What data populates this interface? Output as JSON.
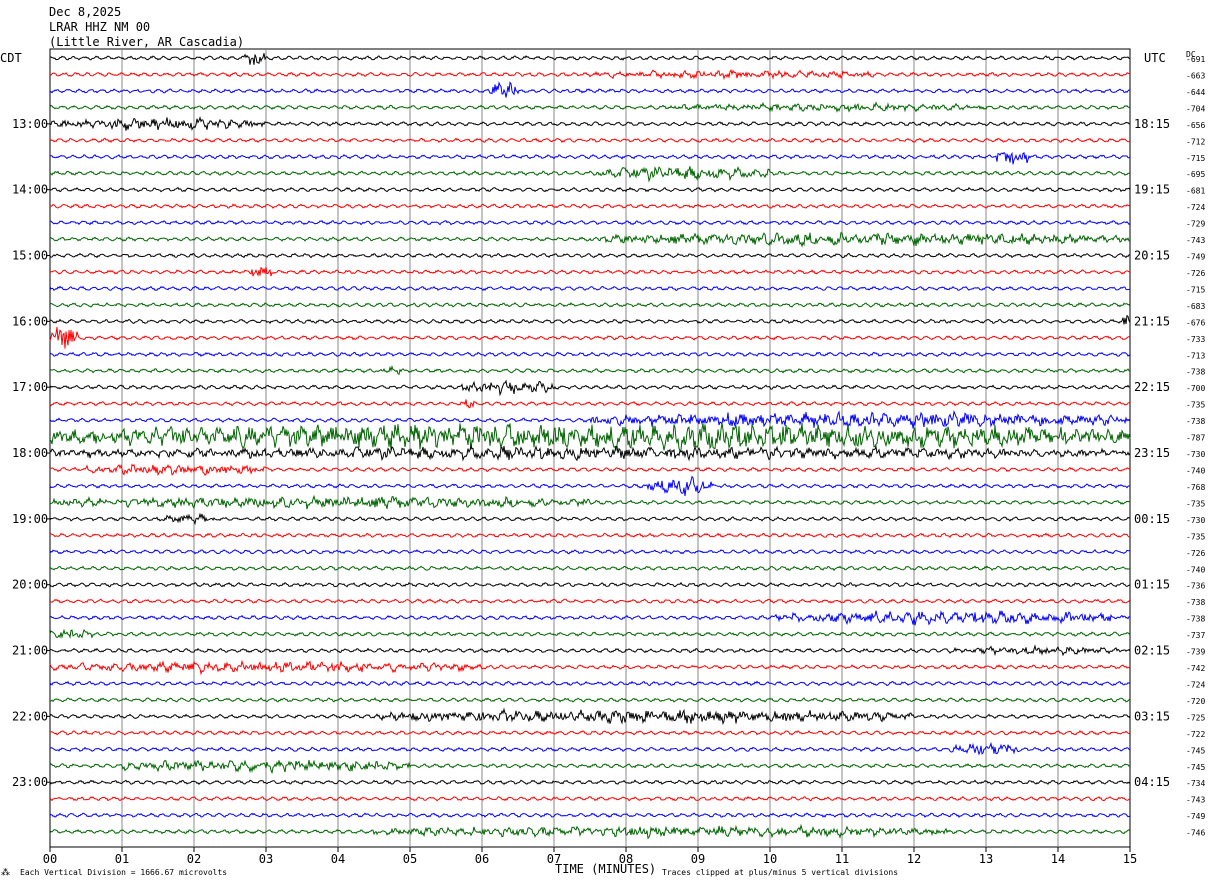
{
  "header": {
    "date": "Dec 8,2025",
    "station": "LRAR HHZ NM 00",
    "location": "(Little River, AR Cascadia)"
  },
  "left_tz": "CDT",
  "right_tz": "UTC",
  "dc_label": "DC",
  "footer": {
    "scale_note": "Each Vertical Division = 1666.67 microvolts",
    "xlabel": "TIME (MINUTES)",
    "clip_note": "Traces clipped at plus/minus 5 vertical divisions"
  },
  "colors": {
    "cycle": [
      "#000000",
      "#ff0000",
      "#0000ff",
      "#006400"
    ],
    "grid": "#888888"
  },
  "chart_data": {
    "type": "line",
    "title": "LRAR HHZ NM 00",
    "xlabel": "TIME (MINUTES)",
    "xlim": [
      0,
      15
    ],
    "x_ticks": [
      "00",
      "01",
      "02",
      "03",
      "04",
      "05",
      "06",
      "07",
      "08",
      "09",
      "10",
      "11",
      "12",
      "13",
      "14",
      "15"
    ],
    "grid": true,
    "row_count": 48,
    "left_hour_labels": [
      "13:00",
      "14:00",
      "15:00",
      "16:00",
      "17:00",
      "18:00",
      "19:00",
      "20:00",
      "21:00",
      "22:00",
      "23:00"
    ],
    "right_hour_labels": [
      "18:15",
      "19:15",
      "20:15",
      "21:15",
      "22:15",
      "23:15",
      "00:15",
      "01:15",
      "02:15",
      "03:15",
      "04:15"
    ],
    "hour_label_rows": [
      4,
      8,
      12,
      16,
      20,
      24,
      28,
      32,
      36,
      40,
      44
    ],
    "dc_offsets": [
      "-691",
      "-663",
      "-644",
      "-704",
      "-656",
      "-712",
      "-715",
      "-695",
      "-681",
      "-724",
      "-729",
      "-743",
      "-749",
      "-726",
      "-715",
      "-683",
      "-676",
      "-733",
      "-713",
      "-738",
      "-700",
      "-735",
      "-738",
      "-787",
      "-730",
      "-740",
      "-768",
      "-735",
      "-730",
      "-735",
      "-726",
      "-740",
      "-736",
      "-738",
      "-738",
      "-737",
      "-739",
      "-742",
      "-724",
      "-720",
      "-725",
      "-722",
      "-745",
      "-745",
      "-734",
      "-743",
      "-749",
      "-746"
    ],
    "events": [
      {
        "row": 0,
        "start": 2.7,
        "end": 3.0,
        "amp": 2.0
      },
      {
        "row": 1,
        "start": 7.5,
        "end": 11.5,
        "amp": 0.8
      },
      {
        "row": 2,
        "start": 6.1,
        "end": 6.5,
        "amp": 2.2
      },
      {
        "row": 3,
        "start": 8.5,
        "end": 13.0,
        "amp": 0.8
      },
      {
        "row": 4,
        "start": 0.0,
        "end": 3.0,
        "amp": 1.3
      },
      {
        "row": 6,
        "start": 13.1,
        "end": 13.6,
        "amp": 2.0
      },
      {
        "row": 7,
        "start": 7.5,
        "end": 10.0,
        "amp": 1.5
      },
      {
        "row": 11,
        "start": 7.5,
        "end": 15.0,
        "amp": 1.4
      },
      {
        "row": 13,
        "start": 2.8,
        "end": 3.1,
        "amp": 2.0
      },
      {
        "row": 16,
        "start": 14.9,
        "end": 15.0,
        "amp": 2.5
      },
      {
        "row": 17,
        "start": 0.0,
        "end": 0.4,
        "amp": 3.0
      },
      {
        "row": 19,
        "start": 4.6,
        "end": 4.9,
        "amp": 0.8
      },
      {
        "row": 20,
        "start": 5.7,
        "end": 7.0,
        "amp": 1.5
      },
      {
        "row": 21,
        "start": 5.7,
        "end": 5.9,
        "amp": 1.2
      },
      {
        "row": 22,
        "start": 7.5,
        "end": 15.0,
        "amp": 1.8
      },
      {
        "row": 23,
        "start": 0.0,
        "end": 15.0,
        "amp": 3.2
      },
      {
        "row": 24,
        "start": 0.0,
        "end": 15.0,
        "amp": 1.4
      },
      {
        "row": 25,
        "start": 0.5,
        "end": 3.0,
        "amp": 1.2
      },
      {
        "row": 26,
        "start": 8.3,
        "end": 9.2,
        "amp": 2.0
      },
      {
        "row": 27,
        "start": 0.0,
        "end": 7.5,
        "amp": 1.3
      },
      {
        "row": 28,
        "start": 1.5,
        "end": 2.3,
        "amp": 0.9
      },
      {
        "row": 34,
        "start": 10.0,
        "end": 15.0,
        "amp": 1.5
      },
      {
        "row": 35,
        "start": 0.0,
        "end": 0.6,
        "amp": 1.0
      },
      {
        "row": 36,
        "start": 12.5,
        "end": 15.0,
        "amp": 0.8
      },
      {
        "row": 37,
        "start": 0.0,
        "end": 6.0,
        "amp": 1.2
      },
      {
        "row": 40,
        "start": 4.5,
        "end": 12.0,
        "amp": 1.5
      },
      {
        "row": 42,
        "start": 12.5,
        "end": 13.5,
        "amp": 1.6
      },
      {
        "row": 43,
        "start": 1.0,
        "end": 5.0,
        "amp": 1.3
      },
      {
        "row": 47,
        "start": 4.5,
        "end": 12.5,
        "amp": 1.2
      }
    ]
  }
}
